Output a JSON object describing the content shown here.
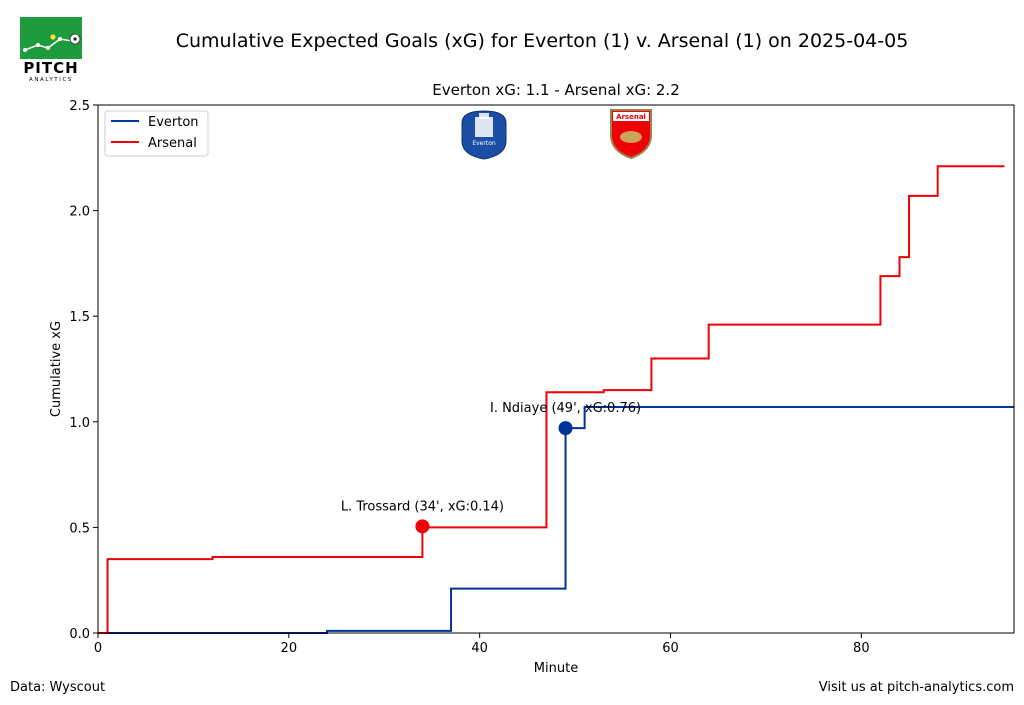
{
  "suptitle": "Cumulative Expected Goals (xG) for Everton (1) v. Arsenal (1) on 2025-04-05",
  "brand": {
    "word": "PITCH",
    "sub": "ANALYTICS",
    "field_color": "#1e9b3c"
  },
  "footer": {
    "left": "Data: Wyscout",
    "right": "Visit us at pitch-analytics.com"
  },
  "crests": {
    "everton": "Everton",
    "arsenal": "Arsenal"
  },
  "chart_data": {
    "type": "line",
    "title": "Everton xG: 1.1 - Arsenal xG: 2.2",
    "xlabel": "Minute",
    "ylabel": "Cumulative xG",
    "xlim": [
      0,
      96
    ],
    "ylim": [
      0,
      2.5
    ],
    "xticks": [
      0,
      20,
      40,
      60,
      80
    ],
    "xtick_labels": [
      "0",
      "20",
      "40",
      "60",
      "80"
    ],
    "yticks": [
      0,
      0.5,
      1.0,
      1.5,
      2.0,
      2.5
    ],
    "ytick_labels": [
      "0.0",
      "0.5",
      "1.0",
      "1.5",
      "2.0",
      "2.5"
    ],
    "grid": false,
    "legend": "top-left",
    "step": "post",
    "series": [
      {
        "name": "Everton",
        "color": "#003399",
        "x": [
          0,
          24,
          37,
          49,
          51,
          96
        ],
        "y": [
          0,
          0.01,
          0.21,
          0.97,
          1.07,
          1.07
        ]
      },
      {
        "name": "Arsenal",
        "color": "#ef0107",
        "x": [
          0,
          1,
          12,
          34,
          47,
          53,
          58,
          64,
          82,
          84,
          85,
          88,
          95
        ],
        "y": [
          0,
          0.35,
          0.36,
          0.5,
          1.14,
          1.15,
          1.3,
          1.46,
          1.69,
          1.78,
          2.07,
          2.21,
          2.21
        ]
      }
    ],
    "annotations": [
      {
        "text": "L. Trossard (34', xG:0.14)",
        "x": 34,
        "y": 0.505,
        "color": "#ef0107"
      },
      {
        "text": "I. Ndiaye (49', xG:0.76)",
        "x": 49,
        "y": 0.97,
        "color": "#003399"
      }
    ]
  }
}
